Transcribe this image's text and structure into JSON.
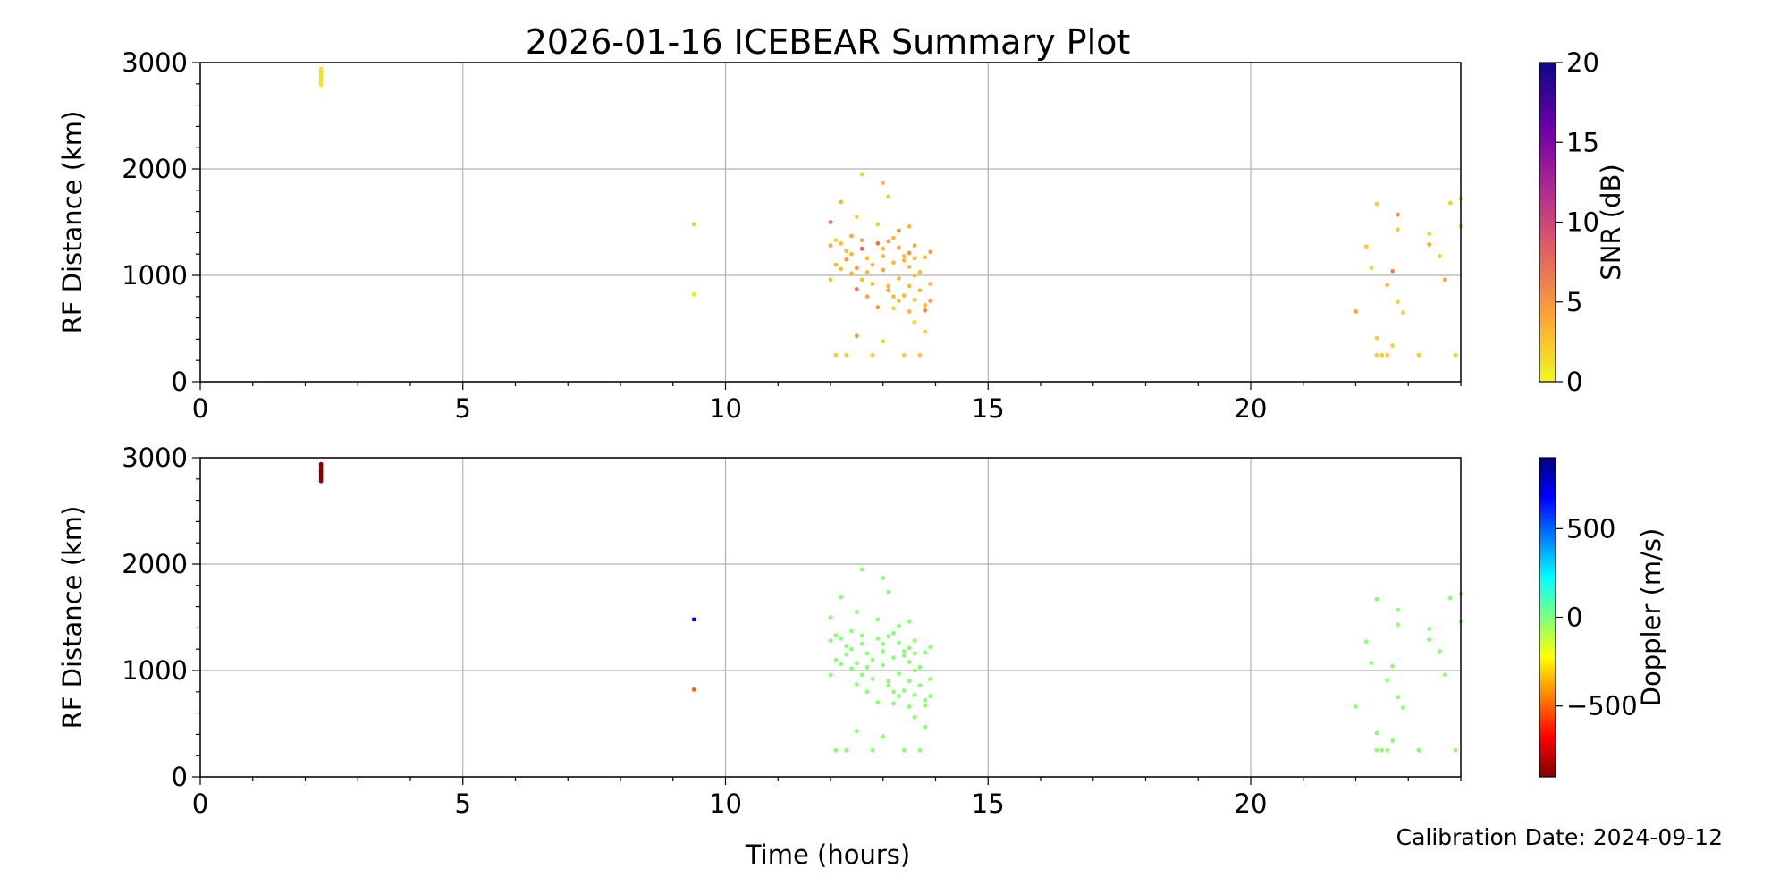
{
  "figure": {
    "title": "2026-01-16 ICEBEAR Summary Plot",
    "xlabel": "Time (hours)",
    "footnote": "Calibration Date: 2024-09-12"
  },
  "chart_data": [
    {
      "type": "scatter",
      "name": "snr-panel",
      "ylabel": "RF Distance (km)",
      "xlim": [
        0,
        24
      ],
      "ylim": [
        0,
        3000
      ],
      "xticks": [
        0,
        5,
        10,
        15,
        20
      ],
      "yticks": [
        0,
        1000,
        2000,
        3000
      ],
      "grid": true,
      "colorbar": {
        "label": "SNR (dB)",
        "range": [
          0,
          20
        ],
        "ticks": [
          0,
          5,
          10,
          15,
          20
        ],
        "colormap": "plasma_r",
        "stops": [
          "#f0f921",
          "#fca636",
          "#e16462",
          "#b12a90",
          "#6a00a8",
          "#0d0887"
        ]
      },
      "points": [
        [
          2.3,
          2800,
          1
        ],
        [
          2.3,
          2820,
          1
        ],
        [
          2.3,
          2840,
          1
        ],
        [
          2.3,
          2860,
          1
        ],
        [
          2.3,
          2880,
          1
        ],
        [
          2.3,
          2900,
          1
        ],
        [
          2.3,
          2920,
          1
        ],
        [
          2.3,
          2940,
          1
        ],
        [
          2.3,
          2790,
          1
        ],
        [
          2.3,
          2870,
          1
        ],
        [
          9.4,
          1480,
          2
        ],
        [
          9.4,
          820,
          1
        ],
        [
          12.0,
          1500,
          7
        ],
        [
          12.0,
          1280,
          4
        ],
        [
          12.0,
          960,
          3
        ],
        [
          12.1,
          1100,
          3
        ],
        [
          12.1,
          250,
          2
        ],
        [
          12.2,
          1690,
          3
        ],
        [
          12.2,
          1300,
          3
        ],
        [
          12.3,
          1150,
          4
        ],
        [
          12.3,
          250,
          2
        ],
        [
          12.3,
          1230,
          3
        ],
        [
          12.4,
          1370,
          4
        ],
        [
          12.4,
          1020,
          3
        ],
        [
          12.5,
          1550,
          2
        ],
        [
          12.5,
          870,
          7
        ],
        [
          12.5,
          430,
          5
        ],
        [
          12.6,
          1950,
          2
        ],
        [
          12.6,
          1250,
          8
        ],
        [
          12.6,
          1330,
          4
        ],
        [
          12.7,
          1030,
          3
        ],
        [
          12.7,
          800,
          4
        ],
        [
          12.8,
          1100,
          3
        ],
        [
          12.8,
          250,
          2
        ],
        [
          12.9,
          1300,
          7
        ],
        [
          12.9,
          700,
          5
        ],
        [
          12.9,
          1480,
          2
        ],
        [
          13.0,
          1870,
          3
        ],
        [
          13.0,
          1180,
          3
        ],
        [
          13.0,
          1050,
          4
        ],
        [
          13.0,
          380,
          2
        ],
        [
          13.1,
          1740,
          2
        ],
        [
          13.1,
          900,
          3
        ],
        [
          13.1,
          1320,
          4
        ],
        [
          13.2,
          1120,
          3
        ],
        [
          13.2,
          800,
          3
        ],
        [
          13.2,
          690,
          2
        ],
        [
          13.3,
          1420,
          5
        ],
        [
          13.3,
          1260,
          4
        ],
        [
          13.3,
          970,
          3
        ],
        [
          13.4,
          1140,
          3
        ],
        [
          13.4,
          810,
          3
        ],
        [
          13.4,
          250,
          2
        ],
        [
          13.5,
          1460,
          3
        ],
        [
          13.5,
          1210,
          5
        ],
        [
          13.5,
          1080,
          3
        ],
        [
          13.5,
          900,
          3
        ],
        [
          13.6,
          1280,
          4
        ],
        [
          13.6,
          1160,
          3
        ],
        [
          13.6,
          770,
          3
        ],
        [
          13.6,
          560,
          2
        ],
        [
          13.7,
          1030,
          3
        ],
        [
          13.7,
          860,
          3
        ],
        [
          13.7,
          250,
          2
        ],
        [
          13.8,
          1170,
          3
        ],
        [
          13.8,
          720,
          3
        ],
        [
          13.8,
          670,
          6
        ],
        [
          13.8,
          470,
          2
        ],
        [
          13.9,
          1220,
          4
        ],
        [
          13.9,
          920,
          3
        ],
        [
          13.9,
          760,
          4
        ],
        [
          12.2,
          1060,
          3
        ],
        [
          12.4,
          1200,
          3
        ],
        [
          12.6,
          960,
          3
        ],
        [
          12.8,
          920,
          3
        ],
        [
          13.0,
          1250,
          3
        ],
        [
          13.2,
          1350,
          3
        ],
        [
          13.4,
          1180,
          3
        ],
        [
          13.6,
          1000,
          3
        ],
        [
          12.1,
          1330,
          2
        ],
        [
          12.5,
          1070,
          5
        ],
        [
          12.7,
          1160,
          3
        ],
        [
          13.1,
          860,
          4
        ],
        [
          13.3,
          760,
          3
        ],
        [
          13.5,
          660,
          3
        ],
        [
          22.0,
          660,
          4
        ],
        [
          22.2,
          1270,
          2
        ],
        [
          22.3,
          1070,
          2
        ],
        [
          22.4,
          1670,
          2
        ],
        [
          22.4,
          410,
          2
        ],
        [
          22.4,
          250,
          2
        ],
        [
          22.5,
          250,
          2
        ],
        [
          22.6,
          250,
          2
        ],
        [
          22.6,
          910,
          3
        ],
        [
          22.7,
          1040,
          6
        ],
        [
          22.7,
          340,
          2
        ],
        [
          22.8,
          1430,
          2
        ],
        [
          22.8,
          750,
          2
        ],
        [
          22.8,
          1570,
          5
        ],
        [
          22.9,
          650,
          2
        ],
        [
          23.2,
          250,
          2
        ],
        [
          23.2,
          250,
          2
        ],
        [
          23.4,
          1390,
          2
        ],
        [
          23.4,
          1290,
          4
        ],
        [
          23.6,
          1180,
          2
        ],
        [
          23.7,
          960,
          4
        ],
        [
          23.8,
          1680,
          2
        ],
        [
          23.9,
          250,
          2
        ],
        [
          24.0,
          1720,
          2
        ],
        [
          24.0,
          1460,
          2
        ]
      ]
    },
    {
      "type": "scatter",
      "name": "doppler-panel",
      "ylabel": "RF Distance (km)",
      "xlim": [
        0,
        24
      ],
      "ylim": [
        0,
        3000
      ],
      "xticks": [
        0,
        5,
        10,
        15,
        20
      ],
      "yticks": [
        0,
        1000,
        2000,
        3000
      ],
      "grid": true,
      "colorbar": {
        "label": "Doppler (m/s)",
        "range": [
          -900,
          900
        ],
        "ticks": [
          -500,
          0,
          500
        ],
        "tick_labels": [
          "−500",
          "0",
          "500"
        ],
        "colormap": "jet_r",
        "stops": [
          "#7f0000",
          "#ff0000",
          "#ff7f00",
          "#ffff00",
          "#7fff7f",
          "#00ffff",
          "#007fff",
          "#0000ff",
          "#00007f"
        ]
      },
      "points": [
        [
          2.3,
          2800,
          -880
        ],
        [
          2.3,
          2820,
          -880
        ],
        [
          2.3,
          2840,
          -880
        ],
        [
          2.3,
          2860,
          -880
        ],
        [
          2.3,
          2880,
          -880
        ],
        [
          2.3,
          2900,
          -880
        ],
        [
          2.3,
          2920,
          -880
        ],
        [
          2.3,
          2940,
          -880
        ],
        [
          2.3,
          2780,
          -880
        ],
        [
          2.3,
          2870,
          -880
        ],
        [
          9.4,
          1480,
          700
        ],
        [
          9.4,
          820,
          -500
        ],
        [
          12.0,
          1500,
          -20
        ],
        [
          12.0,
          1280,
          -20
        ],
        [
          12.0,
          960,
          -20
        ],
        [
          12.1,
          1100,
          -20
        ],
        [
          12.1,
          250,
          -20
        ],
        [
          12.2,
          1690,
          -20
        ],
        [
          12.2,
          1300,
          -20
        ],
        [
          12.3,
          1150,
          -20
        ],
        [
          12.3,
          250,
          -20
        ],
        [
          12.3,
          1230,
          -20
        ],
        [
          12.4,
          1370,
          -20
        ],
        [
          12.4,
          1020,
          -20
        ],
        [
          12.5,
          1550,
          -20
        ],
        [
          12.5,
          870,
          -20
        ],
        [
          12.5,
          430,
          -20
        ],
        [
          12.6,
          1950,
          -20
        ],
        [
          12.6,
          1250,
          -20
        ],
        [
          12.6,
          1330,
          -20
        ],
        [
          12.7,
          1030,
          -20
        ],
        [
          12.7,
          800,
          -20
        ],
        [
          12.8,
          1100,
          -20
        ],
        [
          12.8,
          250,
          -20
        ],
        [
          12.9,
          1300,
          -20
        ],
        [
          12.9,
          700,
          -20
        ],
        [
          12.9,
          1480,
          -20
        ],
        [
          13.0,
          1870,
          -20
        ],
        [
          13.0,
          1180,
          -20
        ],
        [
          13.0,
          1050,
          -20
        ],
        [
          13.0,
          380,
          -20
        ],
        [
          13.1,
          1740,
          -20
        ],
        [
          13.1,
          900,
          -20
        ],
        [
          13.1,
          1320,
          -20
        ],
        [
          13.2,
          1120,
          -20
        ],
        [
          13.2,
          800,
          -20
        ],
        [
          13.2,
          690,
          -20
        ],
        [
          13.3,
          1420,
          -20
        ],
        [
          13.3,
          1260,
          -20
        ],
        [
          13.3,
          970,
          -20
        ],
        [
          13.4,
          1140,
          -20
        ],
        [
          13.4,
          810,
          -20
        ],
        [
          13.4,
          250,
          -20
        ],
        [
          13.5,
          1460,
          -20
        ],
        [
          13.5,
          1210,
          -20
        ],
        [
          13.5,
          1080,
          -20
        ],
        [
          13.5,
          900,
          -20
        ],
        [
          13.6,
          1280,
          -20
        ],
        [
          13.6,
          1160,
          -20
        ],
        [
          13.6,
          770,
          -20
        ],
        [
          13.6,
          560,
          -20
        ],
        [
          13.7,
          1030,
          -20
        ],
        [
          13.7,
          860,
          -20
        ],
        [
          13.7,
          250,
          -20
        ],
        [
          13.8,
          1170,
          -20
        ],
        [
          13.8,
          720,
          -20
        ],
        [
          13.8,
          670,
          -20
        ],
        [
          13.8,
          470,
          -20
        ],
        [
          13.9,
          1220,
          -20
        ],
        [
          13.9,
          920,
          -20
        ],
        [
          13.9,
          760,
          -20
        ],
        [
          12.2,
          1060,
          -20
        ],
        [
          12.4,
          1200,
          -20
        ],
        [
          12.6,
          960,
          -20
        ],
        [
          12.8,
          920,
          -20
        ],
        [
          13.0,
          1250,
          -20
        ],
        [
          13.2,
          1350,
          -20
        ],
        [
          13.4,
          1180,
          -20
        ],
        [
          13.6,
          1000,
          -20
        ],
        [
          12.1,
          1330,
          -20
        ],
        [
          12.5,
          1070,
          -20
        ],
        [
          12.7,
          1160,
          -20
        ],
        [
          13.1,
          860,
          -20
        ],
        [
          13.3,
          760,
          -20
        ],
        [
          13.5,
          660,
          -20
        ],
        [
          22.0,
          660,
          -20
        ],
        [
          22.2,
          1270,
          -20
        ],
        [
          22.3,
          1070,
          -20
        ],
        [
          22.4,
          1670,
          -20
        ],
        [
          22.4,
          410,
          -20
        ],
        [
          22.4,
          250,
          -20
        ],
        [
          22.5,
          250,
          -20
        ],
        [
          22.6,
          250,
          -20
        ],
        [
          22.6,
          910,
          -20
        ],
        [
          22.7,
          1040,
          -20
        ],
        [
          22.7,
          340,
          -20
        ],
        [
          22.8,
          1430,
          -20
        ],
        [
          22.8,
          750,
          -20
        ],
        [
          22.8,
          1570,
          -20
        ],
        [
          22.9,
          650,
          -20
        ],
        [
          23.2,
          250,
          -20
        ],
        [
          23.2,
          250,
          -20
        ],
        [
          23.4,
          1390,
          -20
        ],
        [
          23.4,
          1290,
          -20
        ],
        [
          23.6,
          1180,
          -20
        ],
        [
          23.7,
          960,
          -20
        ],
        [
          23.8,
          1680,
          -20
        ],
        [
          23.9,
          250,
          -20
        ],
        [
          24.0,
          1720,
          -20
        ],
        [
          24.0,
          1460,
          -20
        ]
      ]
    }
  ]
}
